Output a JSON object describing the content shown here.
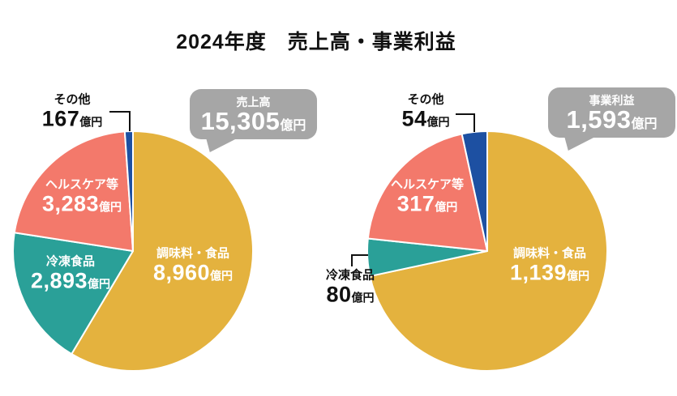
{
  "page": {
    "title": "2024年度　売上高・事業利益"
  },
  "chart_data": [
    {
      "type": "pie",
      "name": "sales",
      "title": "売上高",
      "callout": {
        "label": "売上高",
        "value": 15305,
        "value_display": "15,305",
        "unit": "億円"
      },
      "categories": [
        "調味料・食品",
        "冷凍食品",
        "ヘルスケア等",
        "その他"
      ],
      "slice_ids": [
        "seasonings-foods",
        "frozen-foods",
        "healthcare",
        "other"
      ],
      "values": [
        8960,
        2893,
        3283,
        167
      ],
      "value_displays": [
        "8,960",
        "2,893",
        "3,283",
        "167"
      ],
      "unit": "億円",
      "colors": [
        "#E4B23E",
        "#2AA098",
        "#F3796B",
        "#1D50A2"
      ],
      "start_angle_deg": 0,
      "direction": "clockwise",
      "label_placement": [
        "inside",
        "inside",
        "inside",
        "outside"
      ]
    },
    {
      "type": "pie",
      "name": "business-profit",
      "title": "事業利益",
      "callout": {
        "label": "事業利益",
        "value": 1593,
        "value_display": "1,593",
        "unit": "億円"
      },
      "categories": [
        "調味料・食品",
        "冷凍食品",
        "ヘルスケア等",
        "その他"
      ],
      "slice_ids": [
        "seasonings-foods",
        "frozen-foods",
        "healthcare",
        "other"
      ],
      "values": [
        1139,
        80,
        317,
        54
      ],
      "value_displays": [
        "1,139",
        "80",
        "317",
        "54"
      ],
      "unit": "億円",
      "colors": [
        "#E4B23E",
        "#2AA098",
        "#F3796B",
        "#1D50A2"
      ],
      "start_angle_deg": 0,
      "direction": "clockwise",
      "label_placement": [
        "inside",
        "outside",
        "inside",
        "outside"
      ]
    }
  ],
  "style": {
    "slice_border_color": "#ffffff",
    "callout_background": "#a6a6a6",
    "leader_line_color": "#111111"
  }
}
